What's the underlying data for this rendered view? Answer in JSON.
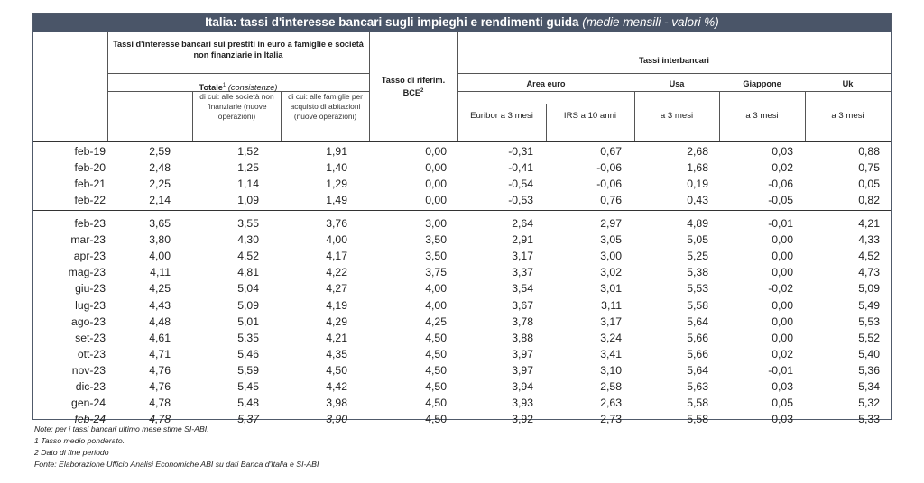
{
  "title": {
    "main": "Italia: tassi d'interesse bancari sugli impieghi e rendimenti guida",
    "suffix": "(medie mensili - valori %)"
  },
  "headers": {
    "prestiti_group": "Tassi d'interesse bancari sui prestiti in euro a famiglie e società non finanziarie in Italia",
    "totale": "Totale",
    "totale_sup": "1",
    "totale_note": "(consistenze)",
    "di_cui_societa": "di cui: alle società non finanziarie (nuove operazioni)",
    "di_cui_famiglie": "di cui: alle famiglie per acquisto di abitazioni (nuove operazioni)",
    "tasso_rif": "Tasso di riferim. BCE",
    "tasso_rif_sup": "2",
    "interbancari": "Tassi interbancari",
    "area_euro": "Area euro",
    "usa": "Usa",
    "giappone": "Giappone",
    "uk": "Uk",
    "euribor": "Euribor a 3 mesi",
    "irs": "IRS a 10 anni",
    "usa_sub": "a 3 mesi",
    "giappone_sub": "a 3 mesi",
    "uk_sub": "a 3 mesi"
  },
  "rows_top": [
    [
      "feb-19",
      "2,59",
      "1,52",
      "1,91",
      "0,00",
      "-0,31",
      "0,67",
      "2,68",
      "0,03",
      "0,88"
    ],
    [
      "feb-20",
      "2,48",
      "1,25",
      "1,40",
      "0,00",
      "-0,41",
      "-0,06",
      "1,68",
      "0,02",
      "0,75"
    ],
    [
      "feb-21",
      "2,25",
      "1,14",
      "1,29",
      "0,00",
      "-0,54",
      "-0,06",
      "0,19",
      "-0,06",
      "0,05"
    ],
    [
      "feb-22",
      "2,14",
      "1,09",
      "1,49",
      "0,00",
      "-0,53",
      "0,76",
      "0,43",
      "-0,05",
      "0,82"
    ]
  ],
  "rows_bottom": [
    [
      "feb-23",
      "3,65",
      "3,55",
      "3,76",
      "3,00",
      "2,64",
      "2,97",
      "4,89",
      "-0,01",
      "4,21"
    ],
    [
      "mar-23",
      "3,80",
      "4,30",
      "4,00",
      "3,50",
      "2,91",
      "3,05",
      "5,05",
      "0,00",
      "4,33"
    ],
    [
      "apr-23",
      "4,00",
      "4,52",
      "4,17",
      "3,50",
      "3,17",
      "3,00",
      "5,25",
      "0,00",
      "4,52"
    ],
    [
      "mag-23",
      "4,11",
      "4,81",
      "4,22",
      "3,75",
      "3,37",
      "3,02",
      "5,38",
      "0,00",
      "4,73"
    ],
    [
      "giu-23",
      "4,25",
      "5,04",
      "4,27",
      "4,00",
      "3,54",
      "3,01",
      "5,53",
      "-0,02",
      "5,09"
    ],
    [
      "lug-23",
      "4,43",
      "5,09",
      "4,19",
      "4,00",
      "3,67",
      "3,11",
      "5,58",
      "0,00",
      "5,49"
    ],
    [
      "ago-23",
      "4,48",
      "5,01",
      "4,29",
      "4,25",
      "3,78",
      "3,17",
      "5,64",
      "0,00",
      "5,53"
    ],
    [
      "set-23",
      "4,61",
      "5,35",
      "4,21",
      "4,50",
      "3,88",
      "3,24",
      "5,66",
      "0,00",
      "5,52"
    ],
    [
      "ott-23",
      "4,71",
      "5,46",
      "4,35",
      "4,50",
      "3,97",
      "3,41",
      "5,66",
      "0,02",
      "5,40"
    ],
    [
      "nov-23",
      "4,76",
      "5,59",
      "4,50",
      "4,50",
      "3,97",
      "3,10",
      "5,64",
      "-0,01",
      "5,36"
    ],
    [
      "dic-23",
      "4,76",
      "5,45",
      "4,42",
      "4,50",
      "3,94",
      "2,58",
      "5,63",
      "0,03",
      "5,34"
    ],
    [
      "gen-24",
      "4,78",
      "5,48",
      "3,98",
      "4,50",
      "3,93",
      "2,63",
      "5,58",
      "0,05",
      "5,32"
    ],
    [
      "feb-24",
      "4,78",
      "5,37",
      "3,90",
      "4,50",
      "3,92",
      "2,73",
      "5,58",
      "0,03",
      "5,33"
    ]
  ],
  "notes": [
    "Note: per i tassi bancari ultimo mese stime SI-ABI.",
    "1 Tasso medio ponderato.",
    "2 Dato di fine periodo",
    "Fonte: Elaborazione Ufficio Analisi Economiche ABI su dati Banca d'Italia e SI-ABI"
  ]
}
